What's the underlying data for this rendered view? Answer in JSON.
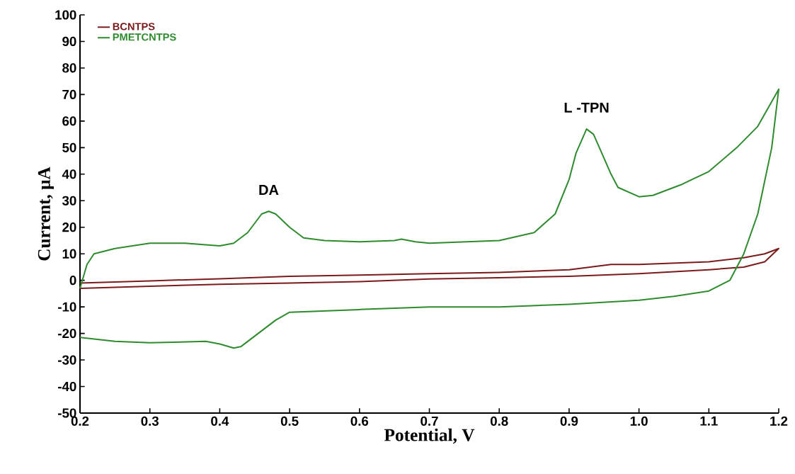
{
  "chart_data": {
    "type": "line",
    "xlabel": "Potential,  V",
    "ylabel": "Current,  μA",
    "xlim": [
      0.2,
      1.2
    ],
    "ylim": [
      -50,
      100
    ],
    "xticks": [
      0.2,
      0.3,
      0.4,
      0.5,
      0.6,
      0.7,
      0.8,
      0.9,
      {
        "value": 1.0,
        "label": "1.0"
      },
      1.1,
      1.2
    ],
    "yticks": [
      -50,
      -40,
      -30,
      -20,
      -10,
      0,
      10,
      20,
      30,
      40,
      50,
      60,
      70,
      80,
      90,
      100
    ],
    "legend": "top left",
    "annotations": [
      {
        "text": "DA",
        "x": 0.47,
        "y": 26
      },
      {
        "text": "L -TPN",
        "x": 0.925,
        "y": 57
      }
    ],
    "series": [
      {
        "name": "BCNTPS",
        "color": "#7b1c1c",
        "x": [
          0.2,
          0.3,
          0.4,
          0.5,
          0.6,
          0.7,
          0.8,
          0.9,
          0.96,
          1.0,
          1.1,
          1.15,
          1.18,
          1.2,
          1.18,
          1.15,
          1.1,
          1.0,
          0.9,
          0.8,
          0.7,
          0.6,
          0.5,
          0.4,
          0.3,
          0.2
        ],
        "values": [
          -1,
          -0.2,
          0.6,
          1.5,
          2,
          2.5,
          3,
          4,
          6,
          6,
          7,
          8.5,
          10,
          12,
          7,
          5,
          4,
          2.5,
          1.5,
          1,
          0.5,
          -0.5,
          -1,
          -1.5,
          -2.2,
          -3
        ]
      },
      {
        "name": "PMETCNTPS",
        "color": "#2e8b2e",
        "x": [
          0.2,
          0.21,
          0.22,
          0.25,
          0.3,
          0.35,
          0.4,
          0.42,
          0.44,
          0.46,
          0.47,
          0.48,
          0.5,
          0.52,
          0.55,
          0.6,
          0.65,
          0.66,
          0.68,
          0.7,
          0.8,
          0.85,
          0.88,
          0.9,
          0.91,
          0.925,
          0.935,
          0.945,
          0.96,
          0.97,
          1.0,
          1.02,
          1.06,
          1.1,
          1.14,
          1.17,
          1.2,
          1.19,
          1.17,
          1.15,
          1.13,
          1.1,
          1.05,
          1.0,
          0.9,
          0.8,
          0.7,
          0.6,
          0.5,
          0.48,
          0.45,
          0.43,
          0.42,
          0.4,
          0.38,
          0.3,
          0.25,
          0.2
        ],
        "values": [
          -3,
          6,
          10,
          12,
          14,
          14,
          13,
          14,
          18,
          25,
          26,
          25,
          20,
          16,
          15,
          14.5,
          15,
          15.5,
          14.5,
          14,
          15,
          18,
          25,
          38,
          48,
          57,
          55,
          49,
          40,
          35,
          31.5,
          32,
          36,
          41,
          50,
          58,
          72,
          50,
          25,
          10,
          0,
          -4,
          -6,
          -7.5,
          -9,
          -10,
          -10,
          -11,
          -12,
          -15,
          -21,
          -25,
          -25.5,
          -24,
          -23,
          -23.5,
          -23,
          -21.5
        ]
      }
    ]
  }
}
